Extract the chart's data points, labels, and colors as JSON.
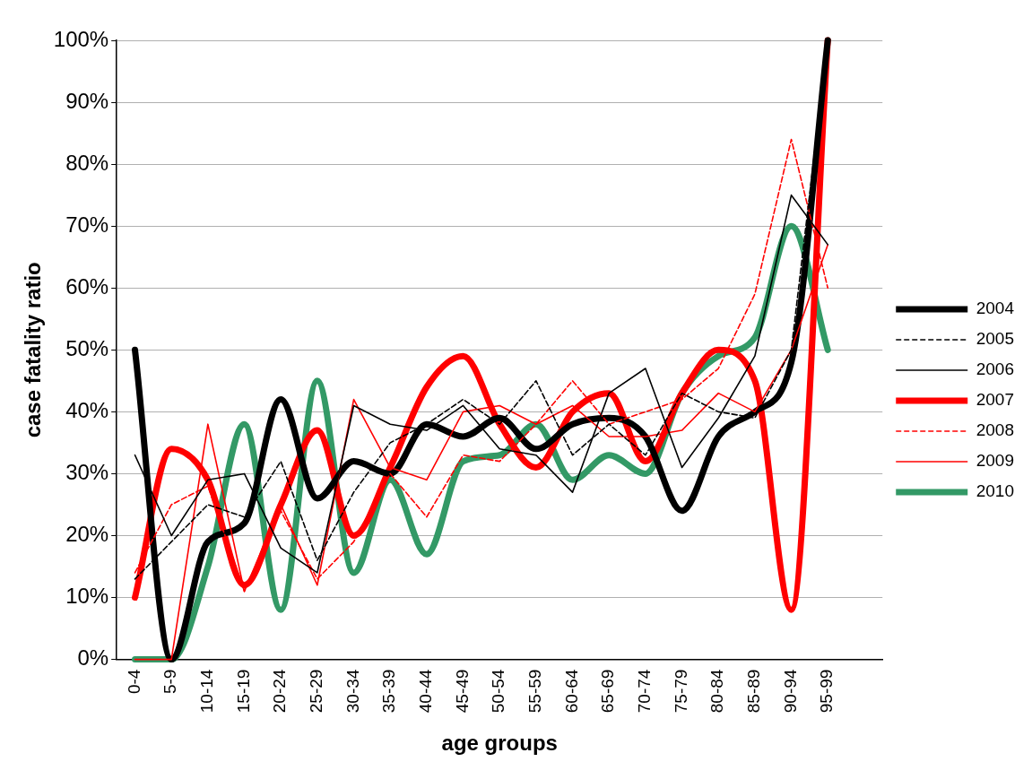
{
  "chart_data": {
    "type": "line",
    "xlabel": "age groups",
    "ylabel": "case fatality ratio",
    "categories": [
      "0-4",
      "5-9",
      "10-14",
      "15-19",
      "20-24",
      "25-29",
      "30-34",
      "35-39",
      "40-44",
      "45-49",
      "50-54",
      "55-59",
      "60-64",
      "65-69",
      "70-74",
      "75-79",
      "80-84",
      "85-89",
      "90-94",
      "95-99",
      null
    ],
    "series": [
      {
        "name": "2004",
        "color": "#000000",
        "line_style": "solid",
        "values": [
          50,
          0,
          19,
          22,
          42,
          26,
          32,
          30,
          38,
          36,
          39,
          34,
          38,
          39,
          36,
          24,
          36,
          40,
          48,
          100,
          null
        ]
      },
      {
        "name": "2005",
        "color": "#000000",
        "line_style": "dashed",
        "values": [
          13,
          19,
          25,
          23,
          32,
          16,
          27,
          35,
          38,
          42,
          38,
          45,
          33,
          38,
          33,
          43,
          40,
          39,
          50,
          100,
          null
        ]
      },
      {
        "name": "2006",
        "color": "#000000",
        "line_style": "solid",
        "values": [
          33,
          20,
          29,
          30,
          18,
          14,
          41,
          38,
          37,
          41,
          34,
          33,
          27,
          43,
          47,
          31,
          39,
          49,
          75,
          67,
          null
        ]
      },
      {
        "name": "2007",
        "color": "#ff0000",
        "line_style": "solid",
        "values": [
          10,
          34,
          29,
          12,
          25,
          37,
          20,
          31,
          44,
          49,
          38,
          31,
          40,
          43,
          32,
          43,
          50,
          45,
          8,
          100,
          null
        ]
      },
      {
        "name": "2008",
        "color": "#ff0000",
        "line_style": "dashed",
        "values": [
          14,
          25,
          28,
          11,
          24,
          13,
          19,
          30,
          23,
          33,
          32,
          38,
          45,
          38,
          40,
          42,
          47,
          59,
          84,
          60,
          null
        ]
      },
      {
        "name": "2009",
        "color": "#ff0000",
        "line_style": "solid",
        "values": [
          0,
          0,
          38,
          11,
          25,
          12,
          42,
          31,
          29,
          40,
          41,
          38,
          41,
          36,
          36,
          37,
          43,
          40,
          50,
          67,
          null
        ]
      },
      {
        "name": "2010",
        "color": "#339966",
        "line_style": "solid",
        "values": [
          0,
          0,
          15,
          38,
          8,
          45,
          14,
          29,
          17,
          32,
          33,
          38,
          29,
          33,
          30,
          43,
          49,
          52,
          70,
          50,
          null
        ]
      }
    ],
    "ylim": [
      0,
      100
    ],
    "yticks": [
      {
        "value": 0,
        "label": "0%"
      },
      {
        "value": 10,
        "label": "10%"
      },
      {
        "value": 20,
        "label": "20%"
      },
      {
        "value": 30,
        "label": "30%"
      },
      {
        "value": 40,
        "label": "40%"
      },
      {
        "value": 50,
        "label": "50%"
      },
      {
        "value": 60,
        "label": "60%"
      },
      {
        "value": 70,
        "label": "70%"
      },
      {
        "value": 80,
        "label": "80%"
      },
      {
        "value": 90,
        "label": "90%"
      },
      {
        "value": 100,
        "label": "100%"
      }
    ],
    "grid": "y",
    "legend": "right",
    "marker": "none"
  }
}
